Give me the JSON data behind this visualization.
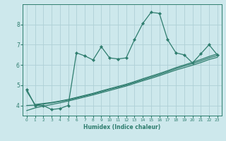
{
  "xlabel": "Humidex (Indice chaleur)",
  "ylabel": "",
  "background_color": "#cde8ec",
  "grid_color": "#afd0d6",
  "line_color": "#2e7d6e",
  "x_data": [
    0,
    1,
    2,
    3,
    4,
    5,
    6,
    7,
    8,
    9,
    10,
    11,
    12,
    13,
    14,
    15,
    16,
    17,
    18,
    19,
    20,
    21,
    22,
    23
  ],
  "y_main": [
    4.8,
    4.0,
    4.0,
    3.8,
    3.85,
    4.0,
    6.6,
    6.45,
    6.25,
    6.9,
    6.35,
    6.3,
    6.35,
    7.25,
    8.05,
    8.6,
    8.55,
    7.25,
    6.6,
    6.5,
    6.1,
    6.55,
    7.0,
    6.5
  ],
  "y_line1": [
    4.7,
    4.05,
    4.1,
    4.15,
    4.22,
    4.3,
    4.4,
    4.5,
    4.6,
    4.72,
    4.83,
    4.94,
    5.05,
    5.18,
    5.32,
    5.45,
    5.58,
    5.72,
    5.87,
    6.0,
    6.13,
    6.27,
    6.42,
    6.55
  ],
  "y_line2": [
    4.0,
    4.02,
    4.07,
    4.13,
    4.2,
    4.27,
    4.37,
    4.47,
    4.57,
    4.68,
    4.8,
    4.9,
    5.01,
    5.14,
    5.27,
    5.4,
    5.53,
    5.67,
    5.82,
    5.95,
    6.07,
    6.2,
    6.35,
    6.47
  ],
  "y_line3": [
    3.75,
    3.88,
    3.97,
    4.05,
    4.13,
    4.22,
    4.32,
    4.42,
    4.52,
    4.63,
    4.74,
    4.85,
    4.96,
    5.09,
    5.22,
    5.34,
    5.47,
    5.61,
    5.75,
    5.87,
    5.99,
    6.12,
    6.27,
    6.38
  ],
  "ylim": [
    3.5,
    9.0
  ],
  "yticks": [
    4,
    5,
    6,
    7,
    8
  ],
  "xticks": [
    0,
    1,
    2,
    3,
    4,
    5,
    6,
    7,
    8,
    9,
    10,
    11,
    12,
    13,
    14,
    15,
    16,
    17,
    18,
    19,
    20,
    21,
    22,
    23
  ]
}
